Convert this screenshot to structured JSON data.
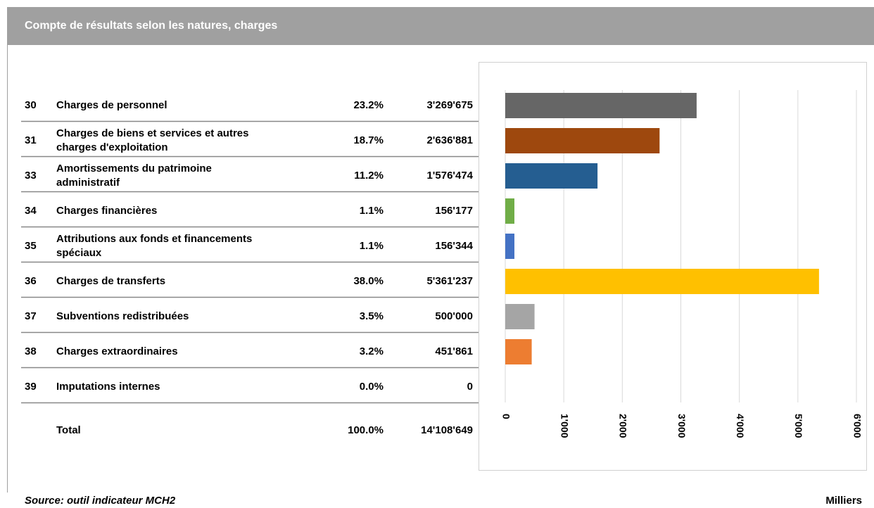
{
  "header": {
    "title": "Compte de résultats selon les natures, charges"
  },
  "table": {
    "rows": [
      {
        "code": "30",
        "label": [
          "Charges de personnel"
        ],
        "pct": "23.2%",
        "amount": "3'269'675"
      },
      {
        "code": "31",
        "label": [
          "Charges de biens et services et autres",
          "charges d'exploitation"
        ],
        "pct": "18.7%",
        "amount": "2'636'881"
      },
      {
        "code": "33",
        "label": [
          "Amortissements du patrimoine",
          "administratif"
        ],
        "pct": "11.2%",
        "amount": "1'576'474"
      },
      {
        "code": "34",
        "label": [
          "Charges financières"
        ],
        "pct": "1.1%",
        "amount": "156'177"
      },
      {
        "code": "35",
        "label": [
          "Attributions aux fonds et financements",
          "spéciaux"
        ],
        "pct": "1.1%",
        "amount": "156'344"
      },
      {
        "code": "36",
        "label": [
          "Charges de transferts"
        ],
        "pct": "38.0%",
        "amount": "5'361'237"
      },
      {
        "code": "37",
        "label": [
          "Subventions redistribuées"
        ],
        "pct": "3.5%",
        "amount": "500'000"
      },
      {
        "code": "38",
        "label": [
          "Charges extraordinaires"
        ],
        "pct": "3.2%",
        "amount": "451'861"
      },
      {
        "code": "39",
        "label": [
          "Imputations internes"
        ],
        "pct": "0.0%",
        "amount": "0"
      }
    ],
    "total": {
      "label": "Total",
      "pct": "100.0%",
      "amount": "14'108'649"
    }
  },
  "chart_data": {
    "type": "bar",
    "orientation": "horizontal",
    "values": [
      3269.675,
      2636.881,
      1576.474,
      156.177,
      156.344,
      5361.237,
      500,
      451.861,
      0
    ],
    "colors": [
      "#666666",
      "#9e480e",
      "#255e91",
      "#70ad47",
      "#4472c4",
      "#ffc000",
      "#a5a5a5",
      "#ed7d31",
      "#264478"
    ],
    "xlim": [
      0,
      6000
    ],
    "xticks": [
      0,
      {
        "value": 1000,
        "label": "1'000"
      },
      {
        "value": 2000,
        "label": "2'000"
      },
      {
        "value": 3000,
        "label": "3'000"
      },
      {
        "value": 4000,
        "label": "4'000"
      },
      {
        "value": 5000,
        "label": "5'000"
      },
      {
        "value": 6000,
        "label": "6'000"
      }
    ],
    "grid": true,
    "x_unit": "Milliers"
  },
  "footer": {
    "source": "Source: outil indicateur MCH2"
  }
}
